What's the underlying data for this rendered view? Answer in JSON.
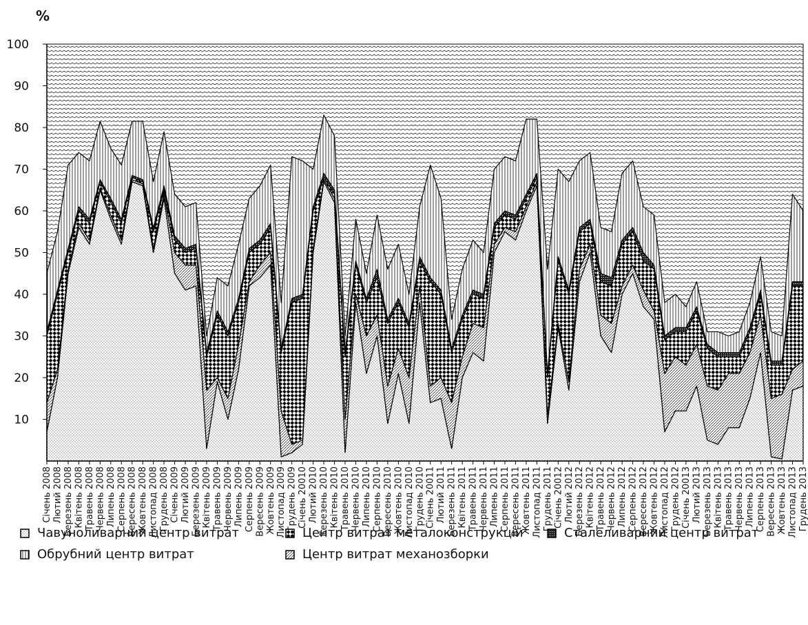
{
  "chart_data": {
    "type": "stacked_area_percent",
    "y_label": "%",
    "categories": [
      "Січень 2008",
      "Лютий 2008",
      "Березень 2008",
      "Квітень 2008",
      "Травень 2008",
      "Червень 2008",
      "Липень 2008",
      "Серпень 2008",
      "Вересень 2008",
      "Жовтень 2008",
      "Листопад 2008",
      "Грудень 2008",
      "Січень 2009",
      "Лютий 2009",
      "Березень 2009",
      "Квітень 2009",
      "Травень 2009",
      "Червень 2009",
      "Липень 2009",
      "Серпень 2009",
      "Вересень 2009",
      "Жовтень 2009",
      "Листопад 2009",
      "Грудень 2009",
      "Січень 20010",
      "Лютий 2010",
      "Березень 2010",
      "Квітень 2010",
      "Травень 2010",
      "Червень 2010",
      "Липень 2010",
      "Серпень 2010",
      "Вересень 2010",
      "Жовтень 2010",
      "Листопад 2010",
      "Грудень 2010",
      "Січень 20011",
      "Лютий 2011",
      "Березень 2011",
      "Квітень 2011",
      "Травень 2011",
      "Червень 2011",
      "Липень 2011",
      "Серпень 2011",
      "Вересень 2011",
      "Жовтень 2011",
      "Листопад 2011",
      "Грудень 2011",
      "Січень 20012",
      "Лютий 2012",
      "Березень 2012",
      "Квітень 2012",
      "Травень 2012",
      "Червень 2012",
      "Липень 2012",
      "Серпень 2012",
      "Вересень 2012",
      "Жовтень 2012",
      "Листопад 2012",
      "Грудень 2012",
      "Січень 20013",
      "Лютий 2013",
      "Березень 2013",
      "Квітень 2013",
      "Травень 2013",
      "Червень 2013",
      "Липень 2013",
      "Серпень 2013",
      "Вересень 2013",
      "Жовтень 2013",
      "Листопад 2013",
      "Грудень 2013"
    ],
    "series": [
      {
        "name": "Чавуноливарний центр витрат",
        "values": [
          7,
          20,
          45,
          56,
          52,
          65,
          58,
          52,
          67,
          66,
          50,
          63,
          45,
          41,
          42,
          3,
          19,
          10,
          22,
          42,
          44,
          47,
          1,
          2,
          4,
          50,
          67,
          62,
          2,
          38,
          21,
          30,
          9,
          21,
          9,
          38,
          14,
          15,
          3,
          20,
          26,
          24,
          50,
          55,
          53,
          60,
          66,
          9,
          32,
          17,
          43,
          50,
          30,
          26,
          40,
          45,
          37,
          34,
          7,
          12,
          12,
          18,
          5,
          4,
          8,
          8,
          15,
          26,
          1,
          0.5,
          17,
          18
        ]
      },
      {
        "name": "Центр витрат механозборки",
        "values": [
          7,
          2,
          1,
          1,
          1,
          0.5,
          1,
          1,
          0.5,
          0.5,
          1,
          1,
          5,
          6,
          5,
          14,
          1,
          5,
          6,
          1,
          3,
          3,
          11,
          2,
          1,
          1,
          0.5,
          1,
          8,
          2,
          9,
          5,
          9,
          6,
          11,
          4,
          4,
          5,
          11,
          5,
          7,
          8,
          2,
          1,
          2,
          1,
          1,
          2,
          1,
          2,
          3,
          2,
          5,
          7,
          2,
          2,
          4,
          2,
          14,
          13,
          11,
          10,
          13,
          13,
          13,
          13,
          11,
          9,
          14,
          15.5,
          5,
          6
        ]
      },
      {
        "name": "Центр витрат металоконструкцій",
        "values": [
          16,
          18,
          4,
          3,
          4,
          1.5,
          3,
          4,
          0.5,
          0.5,
          4,
          1,
          3,
          3,
          4,
          8,
          15,
          15,
          10,
          7,
          5,
          6,
          14,
          34,
          34,
          9,
          0.5,
          1,
          15,
          7,
          8,
          9,
          15,
          11,
          12,
          6,
          25,
          20,
          12,
          9,
          7,
          7,
          4,
          3,
          3,
          2,
          1,
          9,
          15,
          21,
          9,
          5,
          8,
          9,
          10,
          8,
          7,
          10,
          8,
          6,
          8,
          8,
          9,
          8,
          4,
          4,
          5,
          5,
          8,
          7,
          20,
          18
        ]
      },
      {
        "name": "Сталеливарний центр витрат",
        "values": [
          1,
          1,
          1,
          1,
          1,
          0.5,
          1,
          1,
          0.5,
          0.5,
          1,
          1,
          1,
          1,
          1,
          1,
          1,
          1,
          1,
          1,
          1,
          1,
          1,
          1,
          1,
          1,
          1,
          1,
          1,
          1,
          1,
          2,
          1,
          1,
          1,
          1,
          1,
          1,
          1,
          1,
          1,
          1,
          1,
          1,
          1,
          1,
          1,
          1,
          1,
          1,
          1,
          1,
          2,
          2,
          1,
          1,
          2,
          1,
          1,
          1,
          1,
          1,
          1,
          1,
          1,
          1,
          1,
          1,
          1,
          1,
          1,
          1
        ]
      },
      {
        "name": "Обрубний центр витрат",
        "values": [
          14,
          14,
          20,
          13,
          14,
          14,
          12,
          13,
          13,
          14,
          11,
          13,
          10,
          10,
          10,
          4,
          8,
          11,
          13,
          12,
          13,
          14,
          11,
          34,
          32,
          9,
          14,
          13,
          4,
          10,
          6,
          13,
          12,
          13,
          7,
          12,
          27,
          22,
          7,
          11,
          12,
          10,
          13,
          13,
          13,
          18,
          13,
          25,
          21,
          26,
          16,
          16,
          11,
          11,
          16,
          16,
          11,
          12,
          8,
          8,
          5,
          6,
          3,
          5,
          4,
          5,
          6,
          8,
          7,
          6,
          21,
          17
        ]
      }
    ],
    "ylim": [
      0,
      100
    ],
    "yticks": [
      10,
      20,
      30,
      40,
      50,
      60,
      70,
      80,
      90,
      100
    ]
  }
}
